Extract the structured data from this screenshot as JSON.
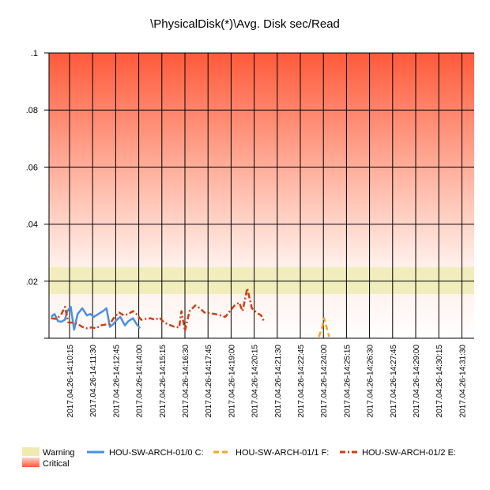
{
  "chart_data": {
    "type": "line",
    "title": "\\PhysicalDisk(*)\\Avg. Disk sec/Read",
    "xlabel": "",
    "ylabel": "",
    "ylim": [
      0,
      0.1
    ],
    "yticks": [
      {
        "value": 0,
        "label": ""
      },
      {
        "value": 0.02,
        "label": ".02"
      },
      {
        "value": 0.04,
        "label": ".04"
      },
      {
        "value": 0.06,
        "label": ".06"
      },
      {
        "value": 0.08,
        "label": ".08"
      },
      {
        "value": 0.1,
        "label": ".1"
      }
    ],
    "x_ticks": [
      "2017.04.26-14:10:15",
      "2017.04.26-14:11:30",
      "2017.04.26-14:12:45",
      "2017.04.26-14:14:00",
      "2017.04.26-14:15:15",
      "2017.04.26-14:16:30",
      "2017.04.26-14:17:45",
      "2017.04.26-14:19:00",
      "2017.04.26-14:20:15",
      "2017.04.26-14:21:30",
      "2017.04.26-14:22:45",
      "2017.04.26-14:24:00",
      "2017.04.26-14:25:15",
      "2017.04.26-14:26:30",
      "2017.04.26-14:27:45",
      "2017.04.26-14:29:00",
      "2017.04.26-14:30:15",
      "2017.04.26-14:31:30"
    ],
    "x_range_ticks": [
      -0.9,
      17.6
    ],
    "grid": true,
    "thresholds": [
      {
        "name": "Warning",
        "from": 0.0155,
        "to": 0.025,
        "color": "#f0eab0"
      },
      {
        "name": "Critical",
        "from": 0.025,
        "to": 0.1,
        "color": "#ff6a4d"
      }
    ],
    "series": [
      {
        "name": "HOU-SW-ARCH-01/0 C:",
        "color": "#4a90e2",
        "style": "solid",
        "points": [
          [
            -0.8,
            0.0075
          ],
          [
            -0.65,
            0.0085
          ],
          [
            -0.5,
            0.006
          ],
          [
            -0.35,
            0.0058
          ],
          [
            -0.2,
            0.0065
          ],
          [
            -0.1,
            0.0095
          ],
          [
            0.05,
            0.011
          ],
          [
            0.2,
            0.003
          ],
          [
            0.35,
            0.0085
          ],
          [
            0.55,
            0.0105
          ],
          [
            0.75,
            0.008
          ],
          [
            0.9,
            0.0085
          ],
          [
            1.05,
            0.0075
          ],
          [
            1.25,
            0.0085
          ],
          [
            1.45,
            0.0095
          ],
          [
            1.6,
            0.0105
          ],
          [
            1.75,
            0.004
          ],
          [
            1.9,
            0.005
          ],
          [
            2.05,
            0.0065
          ],
          [
            2.2,
            0.0075
          ],
          [
            2.4,
            0.0045
          ],
          [
            2.55,
            0.006
          ],
          [
            2.75,
            0.007
          ],
          [
            2.9,
            0.005
          ],
          [
            3.05,
            0.0035
          ]
        ]
      },
      {
        "name": "HOU-SW-ARCH-01/1 F:",
        "color": "#f5a623",
        "style": "dashed",
        "points": [
          [
            10.8,
            0.0005
          ],
          [
            10.93,
            0.0035
          ],
          [
            11.03,
            0.007
          ],
          [
            11.15,
            0.0035
          ],
          [
            11.25,
            0.0005
          ]
        ]
      },
      {
        "name": "HOU-SW-ARCH-01/2 E:",
        "color": "#d03e12",
        "style": "dashdot",
        "points": [
          [
            -0.8,
            0.007
          ],
          [
            -0.55,
            0.0068
          ],
          [
            -0.35,
            0.0085
          ],
          [
            -0.2,
            0.011
          ],
          [
            -0.05,
            0.0055
          ],
          [
            0.15,
            0.0055
          ],
          [
            0.35,
            0.005
          ],
          [
            0.55,
            0.004
          ],
          [
            0.75,
            0.0035
          ],
          [
            0.95,
            0.0038
          ],
          [
            1.15,
            0.0035
          ],
          [
            1.35,
            0.0045
          ],
          [
            1.55,
            0.0048
          ],
          [
            1.75,
            0.005
          ],
          [
            1.95,
            0.0075
          ],
          [
            2.15,
            0.009
          ],
          [
            2.35,
            0.008
          ],
          [
            2.55,
            0.0085
          ],
          [
            2.75,
            0.0095
          ],
          [
            2.9,
            0.0085
          ],
          [
            3.1,
            0.0065
          ],
          [
            3.3,
            0.0068
          ],
          [
            3.5,
            0.007
          ],
          [
            3.7,
            0.0065
          ],
          [
            3.9,
            0.0072
          ],
          [
            4.1,
            0.0055
          ],
          [
            4.3,
            0.0048
          ],
          [
            4.55,
            0.004
          ],
          [
            4.75,
            0.0038
          ],
          [
            4.85,
            0.0095
          ],
          [
            5.0,
            0.0025
          ],
          [
            5.2,
            0.0095
          ],
          [
            5.45,
            0.0115
          ],
          [
            5.65,
            0.0105
          ],
          [
            5.85,
            0.009
          ],
          [
            6.05,
            0.0088
          ],
          [
            6.3,
            0.0085
          ],
          [
            6.55,
            0.008
          ],
          [
            6.75,
            0.0075
          ],
          [
            6.95,
            0.0095
          ],
          [
            7.15,
            0.0115
          ],
          [
            7.35,
            0.0125
          ],
          [
            7.5,
            0.0095
          ],
          [
            7.7,
            0.0175
          ],
          [
            7.9,
            0.0105
          ],
          [
            8.1,
            0.009
          ],
          [
            8.3,
            0.008
          ],
          [
            8.45,
            0.0055
          ]
        ]
      }
    ],
    "legend": {
      "placement": "bottom",
      "thresholds": [
        "Warning",
        "Critical"
      ],
      "series": [
        "HOU-SW-ARCH-01/0 C:",
        "HOU-SW-ARCH-01/1 F:",
        "HOU-SW-ARCH-01/2 E:"
      ]
    }
  }
}
